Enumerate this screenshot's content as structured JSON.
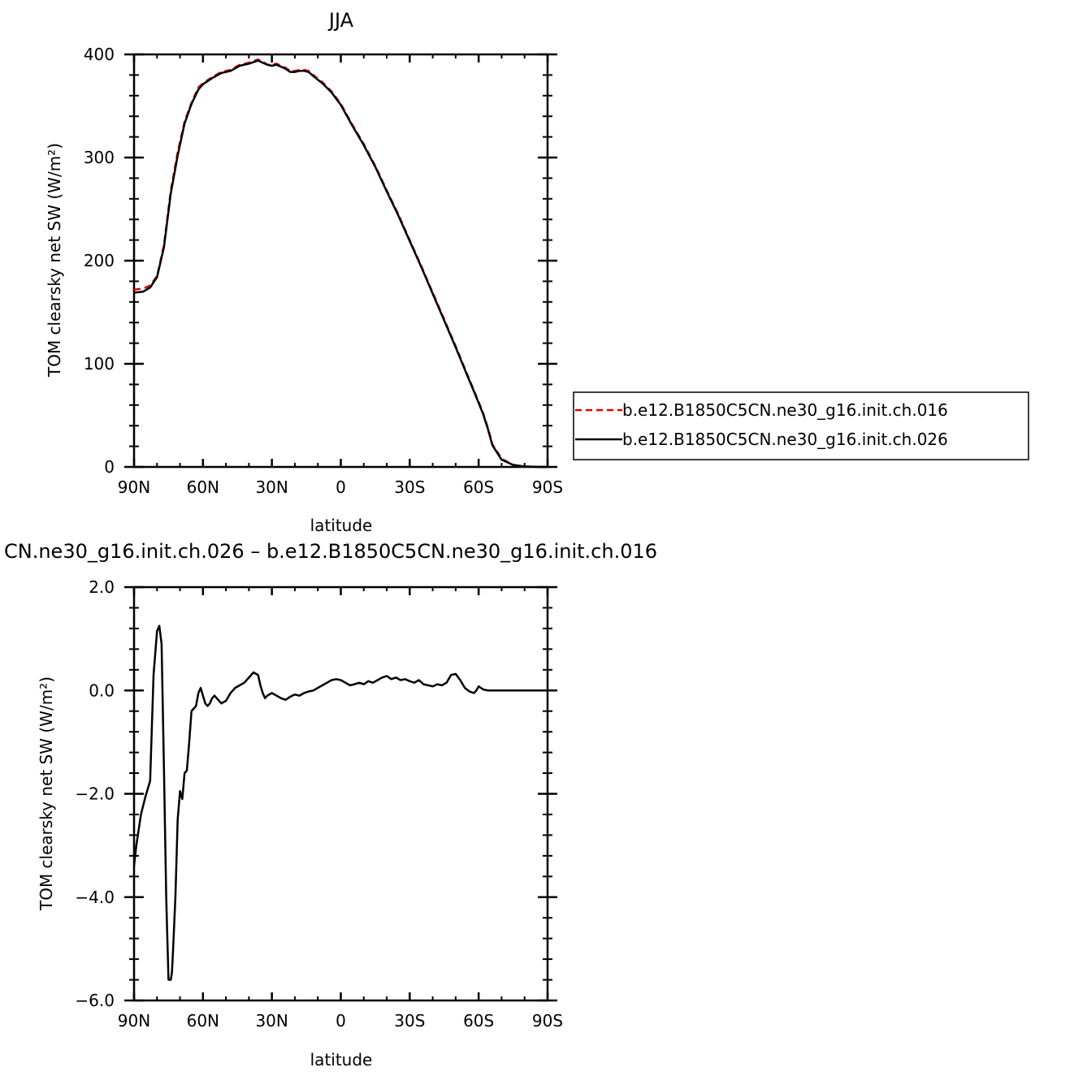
{
  "chart_data": [
    {
      "type": "line",
      "title": "JJA",
      "xlabel": "latitude",
      "ylabel": "TOM clearsky net SW (W/m²)",
      "xlim": [
        90,
        -90
      ],
      "ylim": [
        0,
        400
      ],
      "x_ticks": [
        90,
        60,
        30,
        0,
        -30,
        -60,
        -90
      ],
      "x_tick_labels": [
        "90N",
        "60N",
        "30N",
        "0",
        "30S",
        "60S",
        "90S"
      ],
      "y_ticks": [
        0,
        100,
        200,
        300,
        400
      ],
      "y_tick_labels": [
        "0",
        "100",
        "200",
        "300",
        "400"
      ],
      "legend_position": "right",
      "series": [
        {
          "name": "b.e12.B1850C5CN.ne30_g16.init.ch.016",
          "color": "#e00000",
          "dash": "dashed",
          "x": [
            90,
            86,
            83,
            80,
            77,
            74,
            71,
            68,
            65,
            62,
            60,
            56,
            52,
            48,
            44,
            40,
            36,
            34,
            32,
            30,
            28,
            26,
            24,
            22,
            20,
            18,
            16,
            14,
            12,
            8,
            4,
            0,
            -5,
            -10,
            -15,
            -20,
            -25,
            -30,
            -35,
            -40,
            -45,
            -50,
            -55,
            -58,
            -60,
            -62,
            -64,
            -66,
            -70,
            -75,
            -80,
            -85,
            -90
          ],
          "values": [
            172,
            173,
            176,
            185,
            215,
            268,
            305,
            335,
            353,
            368,
            372,
            378,
            383,
            385,
            390,
            392,
            395,
            393,
            390,
            390,
            391,
            389,
            387,
            384,
            384,
            385,
            385,
            384,
            380,
            373,
            364,
            352,
            332,
            313,
            292,
            268,
            245,
            220,
            195,
            169,
            143,
            117,
            90,
            74,
            63,
            52,
            38,
            22,
            8,
            2,
            0.5,
            0.1,
            0
          ]
        },
        {
          "name": "b.e12.B1850C5CN.ne30_g16.init.ch.026",
          "color": "#000000",
          "dash": "solid",
          "x": [
            90,
            86,
            83,
            80,
            77,
            74,
            71,
            68,
            65,
            62,
            60,
            56,
            52,
            48,
            44,
            40,
            36,
            34,
            32,
            30,
            28,
            26,
            24,
            22,
            20,
            18,
            16,
            14,
            12,
            8,
            4,
            0,
            -5,
            -10,
            -15,
            -20,
            -25,
            -30,
            -35,
            -40,
            -45,
            -50,
            -55,
            -58,
            -60,
            -62,
            -64,
            -66,
            -70,
            -75,
            -80,
            -85,
            -90
          ],
          "values": [
            169,
            170,
            174,
            184,
            213,
            265,
            302,
            333,
            352,
            366,
            371,
            377,
            382,
            384,
            389,
            391,
            394,
            392,
            390,
            389,
            390,
            388,
            386,
            383,
            383,
            384,
            384,
            383,
            379,
            372,
            363,
            351,
            331,
            312,
            291,
            267,
            244,
            219,
            194,
            168,
            142,
            116,
            89,
            73,
            62,
            51,
            37,
            21,
            7,
            2,
            0.5,
            0.1,
            0
          ]
        }
      ]
    },
    {
      "type": "line",
      "title": "CN.ne30_g16.init.ch.026 – b.e12.B1850C5CN.ne30_g16.init.ch.016",
      "xlabel": "latitude",
      "ylabel": "TOM clearsky net SW (W/m²)",
      "xlim": [
        90,
        -90
      ],
      "ylim": [
        -6,
        2
      ],
      "x_ticks": [
        90,
        60,
        30,
        0,
        -30,
        -60,
        -90
      ],
      "x_tick_labels": [
        "90N",
        "60N",
        "30N",
        "0",
        "30S",
        "60S",
        "90S"
      ],
      "y_ticks": [
        -6,
        -4,
        -2,
        0,
        2
      ],
      "y_tick_labels": [
        "−6.0",
        "−4.0",
        "−2.0",
        "0.0",
        "2.0"
      ],
      "series": [
        {
          "color": "#000000",
          "dash": "solid",
          "x": [
            90,
            89,
            87,
            85,
            83,
            81.5,
            80,
            79,
            78,
            77,
            76,
            75,
            74,
            73.5,
            73,
            72,
            71,
            70,
            69,
            68,
            67,
            66,
            65,
            64,
            63,
            62,
            61,
            60,
            59,
            58,
            57,
            56,
            55,
            54,
            52,
            50,
            48,
            46,
            44,
            42,
            40,
            38,
            36,
            35,
            34,
            33,
            32,
            30,
            28,
            26,
            24,
            22,
            20,
            18,
            16,
            14,
            12,
            10,
            8,
            6,
            4,
            2,
            0,
            -2,
            -4,
            -6,
            -8,
            -10,
            -12,
            -14,
            -16,
            -18,
            -20,
            -22,
            -24,
            -26,
            -28,
            -30,
            -32,
            -34,
            -36,
            -38,
            -40,
            -42,
            -44,
            -46,
            -48,
            -50,
            -52,
            -54,
            -56,
            -58,
            -59,
            -60,
            -61,
            -62,
            -63,
            -64,
            -65,
            -66,
            -67,
            -68,
            -69,
            -70,
            -72,
            -75,
            -80,
            -85,
            -90
          ],
          "values": [
            -3.4,
            -3.0,
            -2.4,
            -2.05,
            -1.75,
            0.3,
            1.15,
            1.25,
            0.9,
            -1.5,
            -4.0,
            -5.6,
            -5.6,
            -5.45,
            -5.0,
            -4.0,
            -2.5,
            -1.95,
            -2.1,
            -1.6,
            -1.55,
            -1.0,
            -0.4,
            -0.35,
            -0.3,
            -0.05,
            0.05,
            -0.1,
            -0.25,
            -0.3,
            -0.25,
            -0.15,
            -0.1,
            -0.15,
            -0.25,
            -0.2,
            -0.05,
            0.05,
            0.1,
            0.15,
            0.25,
            0.35,
            0.3,
            0.1,
            -0.05,
            -0.15,
            -0.1,
            -0.05,
            -0.1,
            -0.15,
            -0.18,
            -0.12,
            -0.08,
            -0.1,
            -0.05,
            -0.02,
            0.0,
            0.05,
            0.1,
            0.15,
            0.2,
            0.22,
            0.2,
            0.15,
            0.1,
            0.12,
            0.15,
            0.12,
            0.18,
            0.15,
            0.2,
            0.25,
            0.28,
            0.22,
            0.25,
            0.2,
            0.22,
            0.18,
            0.15,
            0.2,
            0.12,
            0.1,
            0.08,
            0.12,
            0.1,
            0.15,
            0.3,
            0.32,
            0.2,
            0.05,
            -0.02,
            -0.05,
            0.0,
            0.08,
            0.05,
            0.02,
            0.01,
            0.0,
            0.0,
            0.0,
            0.0,
            0.0,
            0.0,
            0.0,
            0.0,
            0.0,
            0.0,
            0.0,
            0.0
          ]
        }
      ]
    }
  ]
}
